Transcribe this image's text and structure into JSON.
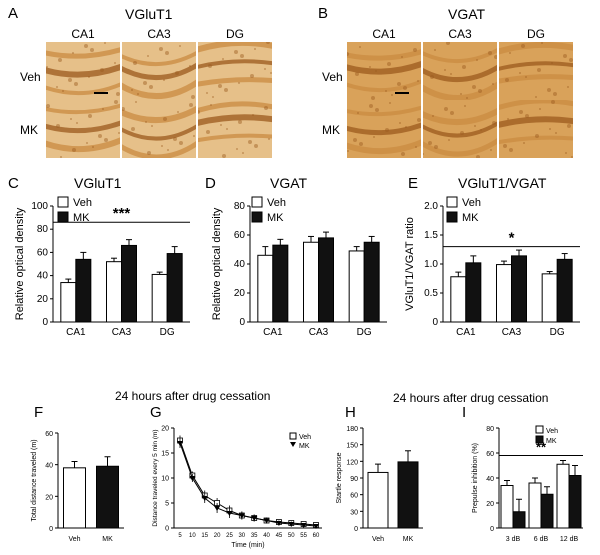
{
  "panels": {
    "A": {
      "label": "A",
      "title": "VGluT1",
      "columns": [
        "CA1",
        "CA3",
        "DG"
      ],
      "rows": [
        "Veh",
        "MK"
      ]
    },
    "B": {
      "label": "B",
      "title": "VGAT",
      "columns": [
        "CA1",
        "CA3",
        "DG"
      ],
      "rows": [
        "Veh",
        "MK"
      ]
    }
  },
  "captions": {
    "left": "24 hours after drug cessation",
    "right": "24 hours after drug cessation"
  },
  "chart_data": [
    {
      "id": "C",
      "label": "C",
      "type": "bar",
      "title": "VGluT1",
      "ylabel": "Relative optical density",
      "categories": [
        "CA1",
        "CA3",
        "DG"
      ],
      "ylim": [
        0,
        100
      ],
      "yticks": [
        "0",
        "20",
        "40",
        "60",
        "80",
        "100"
      ],
      "ytick_values": [
        0,
        20,
        40,
        60,
        80,
        100
      ],
      "series": [
        {
          "name": "Veh",
          "values": [
            34,
            52,
            41
          ],
          "err": [
            3,
            3,
            2
          ]
        },
        {
          "name": "MK",
          "values": [
            54,
            66,
            59
          ],
          "err": [
            6,
            5,
            6
          ]
        }
      ],
      "significance": "***",
      "sig_level": 86
    },
    {
      "id": "D",
      "label": "D",
      "type": "bar",
      "title": "VGAT",
      "ylabel": "Relative optical density",
      "categories": [
        "CA1",
        "CA3",
        "DG"
      ],
      "ylim": [
        0,
        80
      ],
      "yticks": [
        "0",
        "20",
        "40",
        "60",
        "80"
      ],
      "ytick_values": [
        0,
        20,
        40,
        60,
        80
      ],
      "series": [
        {
          "name": "Veh",
          "values": [
            46,
            55,
            49
          ],
          "err": [
            6,
            4,
            3
          ]
        },
        {
          "name": "MK",
          "values": [
            53,
            58,
            55
          ],
          "err": [
            4,
            4,
            4
          ]
        }
      ],
      "significance": ""
    },
    {
      "id": "E",
      "label": "E",
      "type": "bar",
      "title": "VGluT1/VGAT",
      "ylabel": "VGluT1/VGAT ratio",
      "categories": [
        "CA1",
        "CA3",
        "DG"
      ],
      "ylim": [
        0,
        2.0
      ],
      "yticks": [
        "0",
        "0.5",
        "1.0",
        "1.5",
        "2.0"
      ],
      "ytick_values": [
        0,
        0.5,
        1.0,
        1.5,
        2.0
      ],
      "series": [
        {
          "name": "Veh",
          "values": [
            0.78,
            0.99,
            0.83
          ],
          "err": [
            0.08,
            0.06,
            0.04
          ]
        },
        {
          "name": "MK",
          "values": [
            1.02,
            1.14,
            1.08
          ],
          "err": [
            0.12,
            0.1,
            0.1
          ]
        }
      ],
      "significance": "*",
      "sig_level": 1.3
    },
    {
      "id": "F",
      "label": "F",
      "type": "bar",
      "title": "",
      "ylabel": "Total distance traveled (m)",
      "categories": [
        "Veh",
        "MK"
      ],
      "ylim": [
        0,
        60
      ],
      "yticks": [
        "0",
        "20",
        "40",
        "60"
      ],
      "ytick_values": [
        0,
        20,
        40,
        60
      ],
      "values": [
        38,
        39
      ],
      "err": [
        4,
        6
      ]
    },
    {
      "id": "G",
      "label": "G",
      "type": "line",
      "title": "",
      "ylabel": "Distance traveled every 5 min (m)",
      "xlabel": "Time (min)",
      "x": [
        5,
        10,
        15,
        20,
        25,
        30,
        35,
        40,
        45,
        50,
        55,
        60
      ],
      "xticks": [
        "5",
        "10",
        "15",
        "20",
        "25",
        "30",
        "35",
        "40",
        "45",
        "50",
        "55",
        "60"
      ],
      "ylim": [
        0,
        20
      ],
      "yticks": [
        "0",
        "5",
        "10",
        "15",
        "20"
      ],
      "ytick_values": [
        0,
        5,
        10,
        15,
        20
      ],
      "series": [
        {
          "name": "Veh",
          "values": [
            17.5,
            10.5,
            6.5,
            5.0,
            3.5,
            2.5,
            2.0,
            1.5,
            1.2,
            1.0,
            0.8,
            0.6
          ],
          "err": [
            1,
            0.8,
            1,
            1,
            1,
            0.8,
            0.7,
            0.6,
            0.5,
            0.5,
            0.4,
            0.4
          ]
        },
        {
          "name": "MK",
          "values": [
            17.0,
            10.0,
            6.0,
            4.0,
            3.0,
            2.5,
            2.0,
            1.5,
            1.0,
            0.8,
            0.6,
            0.4
          ],
          "err": [
            1,
            0.8,
            1,
            1,
            1,
            0.8,
            0.7,
            0.6,
            0.5,
            0.5,
            0.4,
            0.4
          ]
        }
      ]
    },
    {
      "id": "H",
      "label": "H",
      "type": "bar",
      "title": "",
      "ylabel": "Startle response",
      "categories": [
        "Veh",
        "MK"
      ],
      "ylim": [
        0,
        180
      ],
      "yticks": [
        "0",
        "30",
        "60",
        "90",
        "120",
        "150",
        "180"
      ],
      "ytick_values": [
        0,
        30,
        60,
        90,
        120,
        150,
        180
      ],
      "values": [
        100,
        119
      ],
      "err": [
        15,
        20
      ]
    },
    {
      "id": "I",
      "label": "I",
      "type": "bar",
      "title": "",
      "ylabel": "Prepulse inhibition (%)",
      "categories": [
        "3 dB",
        "6 dB",
        "12 dB"
      ],
      "ylim": [
        0,
        80
      ],
      "yticks": [
        "0",
        "20",
        "40",
        "60",
        "80"
      ],
      "ytick_values": [
        0,
        20,
        40,
        60,
        80
      ],
      "series": [
        {
          "name": "Veh",
          "values": [
            34,
            36,
            51
          ],
          "err": [
            4,
            4,
            3
          ]
        },
        {
          "name": "MK",
          "values": [
            13,
            27,
            42
          ],
          "err": [
            10,
            6,
            8
          ]
        }
      ],
      "significance": "**",
      "sig_level": 58
    }
  ],
  "legend": {
    "veh": "Veh",
    "mk": "MK"
  },
  "colors": {
    "veh": "#ffffff",
    "mk": "#111111",
    "tissue_light": "#e6c089",
    "tissue_mid": "#c98b42",
    "tissue_dark": "#9b5a1e"
  }
}
